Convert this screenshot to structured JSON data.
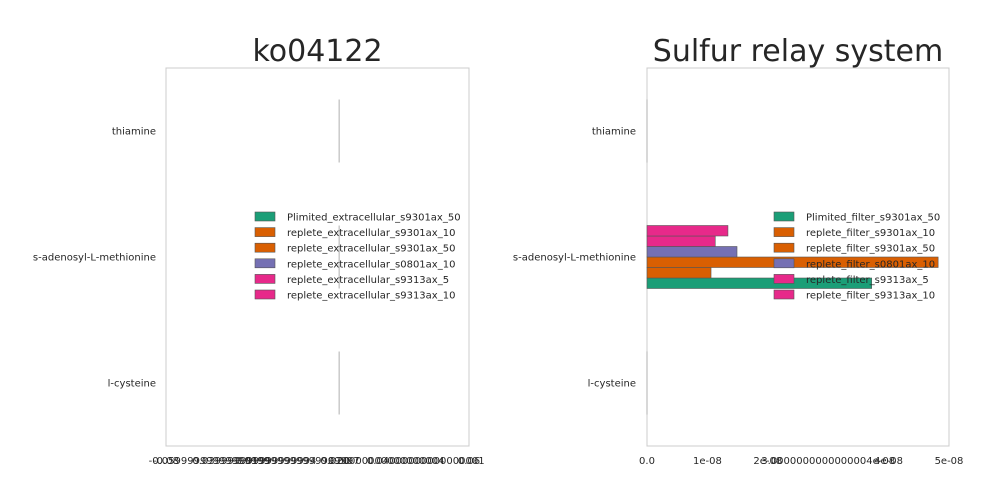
{
  "chart_data": [
    {
      "type": "bar",
      "orientation": "horizontal",
      "title": "ko04122",
      "categories": [
        "thiamine",
        "s-adenosyl-L-methionine",
        "l-cysteine"
      ],
      "xlim": [
        -0.08,
        0.06
      ],
      "xtick_labels": [
        "-0.08",
        "-0.05999999999999999",
        "-0.039999999999999994",
        "-0.019999999999999997",
        "0.00",
        "0.020000000000000004",
        "0.04000000000000001",
        "0.06"
      ],
      "legend_position": "center-right",
      "grid": false,
      "series": [
        {
          "name": "Plimited_extracellular_s9301ax_50",
          "color": "#1b9e77",
          "values": [
            0,
            0,
            0
          ]
        },
        {
          "name": "replete_extracellular_s9301ax_10",
          "color": "#d95f02",
          "values": [
            0,
            0,
            0
          ]
        },
        {
          "name": "replete_extracellular_s9301ax_50",
          "color": "#d95f02",
          "values": [
            0,
            0,
            0
          ]
        },
        {
          "name": "replete_extracellular_s0801ax_10",
          "color": "#7570b3",
          "values": [
            0,
            0,
            0
          ]
        },
        {
          "name": "replete_extracellular_s9313ax_5",
          "color": "#e7298a",
          "values": [
            0,
            0,
            0
          ]
        },
        {
          "name": "replete_extracellular_s9313ax_10",
          "color": "#e7298a",
          "values": [
            0,
            0,
            0
          ]
        }
      ]
    },
    {
      "type": "bar",
      "orientation": "horizontal",
      "title": "Sulfur relay system",
      "categories": [
        "thiamine",
        "s-adenosyl-L-methionine",
        "l-cysteine"
      ],
      "xlim": [
        0,
        5e-08
      ],
      "xtick_labels": [
        "0.0",
        "1e-08",
        "2e-08",
        "3.0000000000000004e-08",
        "4e-08",
        "5e-08"
      ],
      "legend_position": "center-right",
      "grid": false,
      "series": [
        {
          "name": "Plimited_filter_s9301ax_50",
          "color": "#1b9e77",
          "values": [
            0,
            3.72e-08,
            0
          ]
        },
        {
          "name": "replete_filter_s9301ax_10",
          "color": "#d95f02",
          "values": [
            0,
            1.06e-08,
            0
          ]
        },
        {
          "name": "replete_filter_s9301ax_50",
          "color": "#d95f02",
          "values": [
            0,
            4.82e-08,
            0
          ]
        },
        {
          "name": "replete_filter_s0801ax_10",
          "color": "#7570b3",
          "values": [
            0,
            1.49e-08,
            0
          ]
        },
        {
          "name": "replete_filter_s9313ax_5",
          "color": "#e7298a",
          "values": [
            0,
            1.13e-08,
            0
          ]
        },
        {
          "name": "replete_filter_s9313ax_10",
          "color": "#e7298a",
          "values": [
            0,
            1.34e-08,
            0
          ]
        }
      ]
    }
  ]
}
